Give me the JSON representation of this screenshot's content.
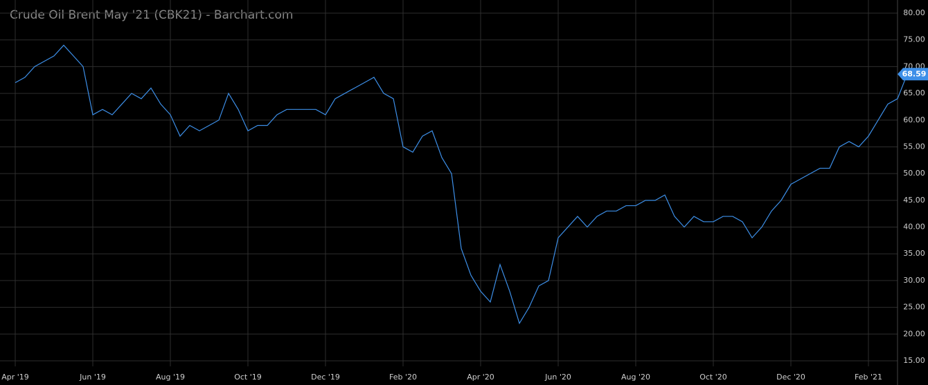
{
  "chart_data": {
    "type": "line",
    "title": "Crude Oil Brent May '21 (CBK21) - Barchart.com",
    "categories": [
      "Apr '19",
      null,
      null,
      null,
      null,
      null,
      null,
      null,
      "Jun '19",
      null,
      null,
      null,
      null,
      null,
      null,
      null,
      "Aug '19",
      null,
      null,
      null,
      null,
      null,
      null,
      null,
      "Oct '19",
      null,
      null,
      null,
      null,
      null,
      null,
      null,
      "Dec '19",
      null,
      null,
      null,
      null,
      null,
      null,
      null,
      "Feb '20",
      null,
      null,
      null,
      null,
      null,
      null,
      null,
      "Apr '20",
      null,
      null,
      null,
      null,
      null,
      null,
      null,
      "Jun '20",
      null,
      null,
      null,
      null,
      null,
      null,
      null,
      "Aug '20",
      null,
      null,
      null,
      null,
      null,
      null,
      null,
      "Oct '20",
      null,
      null,
      null,
      null,
      null,
      null,
      null,
      "Dec '20",
      null,
      null,
      null,
      null,
      null,
      null,
      null,
      "Feb '21",
      null,
      null,
      null,
      null
    ],
    "series": [
      {
        "name": "CBK21",
        "color": "#3d8fe8",
        "values": [
          67,
          68,
          70,
          71,
          72,
          74,
          72,
          70,
          61,
          62,
          61,
          63,
          65,
          64,
          66,
          63,
          61,
          57,
          59,
          58,
          59,
          60,
          65,
          62,
          58,
          59,
          59,
          61,
          62,
          62,
          62,
          62,
          61,
          64,
          65,
          66,
          67,
          68,
          65,
          64,
          55,
          54,
          57,
          58,
          53,
          50,
          36,
          31,
          28,
          26,
          33,
          28,
          22,
          25,
          29,
          30,
          38,
          40,
          42,
          40,
          42,
          43,
          43,
          44,
          44,
          45,
          45,
          46,
          42,
          40,
          42,
          41,
          41,
          42,
          42,
          41,
          38,
          40,
          43,
          45,
          48,
          49,
          50,
          51,
          51,
          55,
          56,
          55,
          57,
          60,
          63,
          64,
          68.59
        ]
      }
    ],
    "ylim": [
      15,
      80
    ],
    "yticks": [
      {
        "value": 15,
        "label": "15.00"
      },
      {
        "value": 20,
        "label": "20.00"
      },
      {
        "value": 25,
        "label": "25.00"
      },
      {
        "value": 30,
        "label": "30.00"
      },
      {
        "value": 35,
        "label": "35.00"
      },
      {
        "value": 40,
        "label": "40.00"
      },
      {
        "value": 45,
        "label": "45.00"
      },
      {
        "value": 50,
        "label": "50.00"
      },
      {
        "value": 55,
        "label": "55.00"
      },
      {
        "value": 60,
        "label": "60.00"
      },
      {
        "value": 65,
        "label": "65.00"
      },
      {
        "value": 70,
        "label": "70.00"
      },
      {
        "value": 75,
        "label": "75.00"
      },
      {
        "value": 80,
        "label": "80.00"
      }
    ],
    "grid": true
  }
}
